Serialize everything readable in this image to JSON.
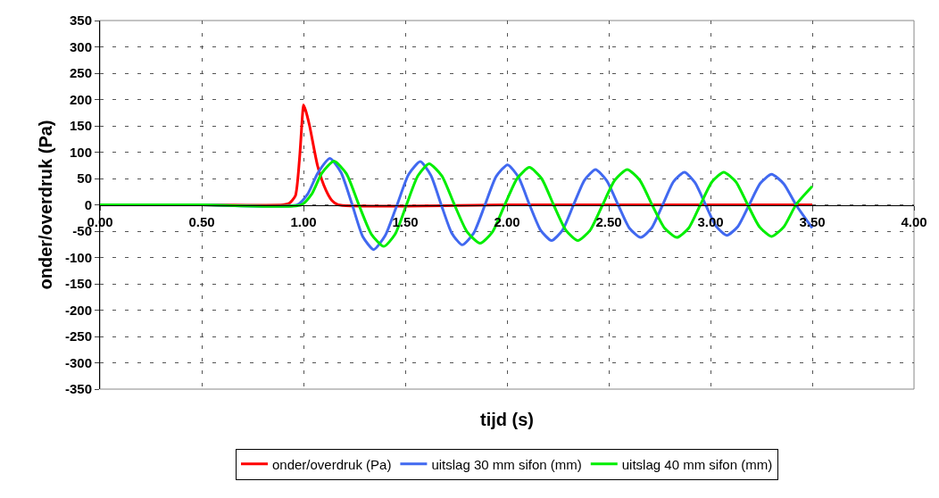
{
  "chart_data": {
    "type": "line",
    "xlabel": "tijd (s)",
    "ylabel": "onder/overdruk (Pa)",
    "xlim": [
      0,
      4
    ],
    "xticks": [
      {
        "value": 0,
        "label": "0.00"
      },
      {
        "value": 0.5,
        "label": "0.50"
      },
      {
        "value": 1,
        "label": "1.00"
      },
      {
        "value": 1.5,
        "label": "1.50"
      },
      {
        "value": 2,
        "label": "2.00"
      },
      {
        "value": 2.5,
        "label": "2.50"
      },
      {
        "value": 3,
        "label": "3.00"
      },
      {
        "value": 3.5,
        "label": "3.50"
      },
      {
        "value": 4,
        "label": "4.00"
      }
    ],
    "ylim": [
      -350,
      350
    ],
    "yticks": [
      -350,
      -300,
      -250,
      -200,
      -150,
      -100,
      -50,
      0,
      50,
      100,
      150,
      200,
      250,
      300,
      350
    ],
    "grid": true,
    "legend": "bottom",
    "marker": "none",
    "line_style": "solid",
    "series": [
      {
        "name": "onder/overdruk (Pa)",
        "color": "#ff0000",
        "x": [
          0,
          0.5,
          0.9,
          0.93,
          0.96,
          0.98,
          0.995,
          1.0,
          1.01,
          1.03,
          1.07,
          1.11,
          1.14,
          1.17,
          2.0,
          3.5
        ],
        "values": [
          0,
          0,
          0,
          3,
          17,
          85,
          170,
          190,
          180,
          150,
          73,
          28,
          8,
          0,
          0,
          0
        ]
      },
      {
        "name": "uitslag 30 mm sifon (mm)",
        "color": "#4169f0",
        "x": [
          0,
          0.5,
          0.97,
          1.02,
          1.07,
          1.13,
          1.184,
          1.238,
          1.291,
          1.345,
          1.402,
          1.46,
          1.517,
          1.574,
          1.626,
          1.677,
          1.729,
          1.78,
          1.836,
          1.892,
          1.947,
          2.003,
          2.057,
          2.111,
          2.165,
          2.219,
          2.273,
          2.327,
          2.381,
          2.435,
          2.49,
          2.546,
          2.601,
          2.657,
          2.711,
          2.765,
          2.818,
          2.872,
          2.924,
          2.976,
          3.028,
          3.08,
          3.135,
          3.19,
          3.245,
          3.3,
          3.36,
          3.42,
          3.5
        ],
        "values": [
          0,
          0,
          0,
          20,
          60,
          88,
          62,
          2,
          -60,
          -85,
          -58,
          0,
          58,
          82,
          56,
          0,
          -54,
          -76,
          -54,
          0,
          54,
          76,
          52,
          0,
          -48,
          -68,
          -48,
          0,
          47,
          67,
          46,
          0,
          -44,
          -62,
          -44,
          0,
          44,
          62,
          42,
          0,
          -41,
          -58,
          -41,
          0,
          41,
          58,
          40,
          0,
          -44
        ]
      },
      {
        "name": "uitslag 40 mm sifon (mm)",
        "color": "#00ee00",
        "x": [
          0,
          0.5,
          0.99,
          1.04,
          1.09,
          1.15,
          1.211,
          1.272,
          1.334,
          1.395,
          1.45,
          1.506,
          1.562,
          1.617,
          1.68,
          1.742,
          1.805,
          1.868,
          1.928,
          1.989,
          2.05,
          2.11,
          2.17,
          2.229,
          2.289,
          2.348,
          2.409,
          2.47,
          2.53,
          2.591,
          2.652,
          2.713,
          2.774,
          2.835,
          2.893,
          2.95,
          3.008,
          3.065,
          3.124,
          3.183,
          3.241,
          3.3,
          3.36,
          3.42,
          3.5
        ],
        "values": [
          0,
          0,
          0,
          20,
          60,
          83,
          59,
          0,
          -56,
          -79,
          -56,
          0,
          55,
          78,
          55,
          0,
          -52,
          -73,
          -52,
          0,
          50,
          71,
          50,
          0,
          -48,
          -68,
          -48,
          0,
          47,
          67,
          47,
          0,
          -44,
          -62,
          -44,
          0,
          44,
          62,
          44,
          0,
          -42,
          -60,
          -42,
          0,
          35
        ]
      }
    ]
  }
}
